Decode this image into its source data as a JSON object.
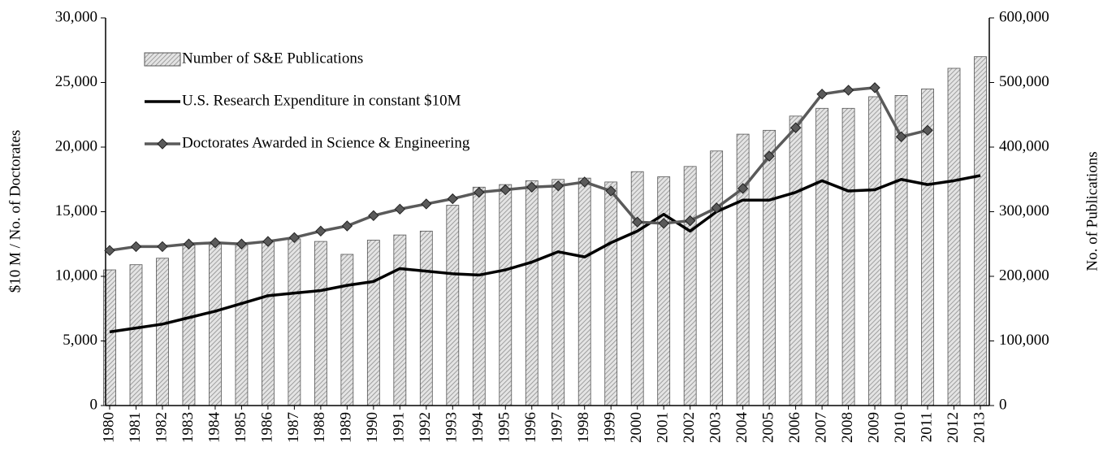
{
  "chart_data": {
    "type": "bar_line",
    "y_label": "$10 M / No. of Doctorates",
    "y2_label": "No. of Publications",
    "categories": [
      "1980",
      "1981",
      "1982",
      "1983",
      "1984",
      "1985",
      "1986",
      "1987",
      "1988",
      "1989",
      "1990",
      "1991",
      "1992",
      "1993",
      "1994",
      "1995",
      "1996",
      "1997",
      "1998",
      "1999",
      "2000",
      "2001",
      "2002",
      "2003",
      "2004",
      "2005",
      "2006",
      "2007",
      "2008",
      "2009",
      "2010",
      "2011",
      "2012",
      "2013"
    ],
    "series": [
      {
        "name": "Number of S&E Publications",
        "kind": "bar",
        "axis": "y2",
        "color": "#d0d0d0",
        "values": [
          210000,
          218000,
          228000,
          248000,
          250000,
          250000,
          254000,
          258000,
          254000,
          234000,
          256000,
          264000,
          270000,
          310000,
          338000,
          342000,
          348000,
          350000,
          352000,
          346000,
          362000,
          354000,
          370000,
          394000,
          420000,
          426000,
          448000,
          460000,
          460000,
          478000,
          480000,
          490000,
          522000,
          540000
        ]
      },
      {
        "name": "U.S. Research Expenditure in constant $10M",
        "kind": "line",
        "color": "#000000",
        "values": [
          5700,
          6000,
          6300,
          6800,
          7300,
          7900,
          8500,
          8700,
          8900,
          9300,
          9600,
          10600,
          10400,
          10200,
          10100,
          10500,
          11100,
          11900,
          11500,
          12600,
          13500,
          14800,
          13500,
          15000,
          15900,
          15900,
          16500,
          17400,
          16600,
          16700,
          17500,
          17100,
          17400,
          17800
        ]
      },
      {
        "name": "Doctorates Awarded in Science & Engineering",
        "kind": "line_marker",
        "color": "#5a5a5a",
        "values": [
          12000,
          12300,
          12300,
          12500,
          12600,
          12500,
          12700,
          13000,
          13500,
          13900,
          14700,
          15200,
          15600,
          16000,
          16500,
          16700,
          16900,
          17000,
          17300,
          16600,
          14200,
          14100,
          14300,
          15300,
          16800,
          19300,
          21500,
          24100,
          24400,
          24600,
          20800,
          21300,
          null,
          null
        ]
      }
    ],
    "ylim": [
      0,
      30000
    ],
    "yticks": [
      0,
      {
        "value": 5000,
        "label": "5,000"
      },
      {
        "value": 10000,
        "label": "10,000"
      },
      {
        "value": 15000,
        "label": "15,000"
      },
      {
        "value": 20000,
        "label": "20,000"
      },
      {
        "value": 25000,
        "label": "25,000"
      },
      {
        "value": 30000,
        "label": "30,000"
      }
    ],
    "y2lim": [
      0,
      600000
    ],
    "y2ticks": [
      0,
      {
        "value": 100000,
        "label": "100,000"
      },
      {
        "value": 200000,
        "label": "200,000"
      },
      {
        "value": 300000,
        "label": "300,000"
      },
      {
        "value": 400000,
        "label": "400,000"
      },
      {
        "value": 500000,
        "label": "500,000"
      },
      {
        "value": 600000,
        "label": "600,000"
      }
    ],
    "legend": "top-left"
  }
}
